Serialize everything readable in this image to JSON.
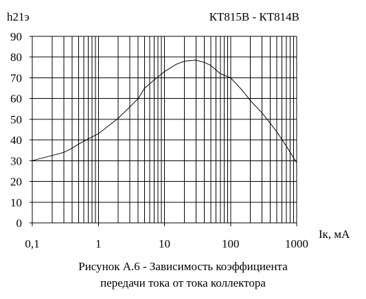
{
  "chart_data": {
    "type": "line",
    "title": "КТ815В - КТ814В",
    "ylabel": "h21э",
    "xlabel": "Iк, мА",
    "x_scale": "log",
    "xlim": [
      0.1,
      1000
    ],
    "ylim": [
      0,
      90
    ],
    "x_ticks": [
      "0,1",
      "1",
      "10",
      "100",
      "1000"
    ],
    "y_ticks": [
      "0",
      "10",
      "20",
      "30",
      "40",
      "50",
      "60",
      "70",
      "80",
      "90"
    ],
    "grid": true,
    "series": [
      {
        "x": [
          0.1,
          0.15,
          0.2,
          0.3,
          0.4,
          0.5,
          0.7,
          1,
          2,
          3,
          4,
          5,
          7,
          10,
          15,
          20,
          30,
          40,
          50,
          70,
          100,
          150,
          200,
          300,
          400,
          500,
          700,
          1000
        ],
        "y": [
          30,
          31.5,
          32.5,
          34,
          36,
          38,
          40.5,
          43,
          50.5,
          56,
          60,
          65,
          69,
          73,
          76.5,
          78,
          78.5,
          77.5,
          76,
          72,
          70,
          64,
          59,
          53,
          48,
          44,
          37,
          29
        ]
      }
    ]
  },
  "caption": {
    "line1": "Рисунок А.6 - Зависимость коэффициента",
    "line2": "передачи тока от тока коллектора"
  }
}
